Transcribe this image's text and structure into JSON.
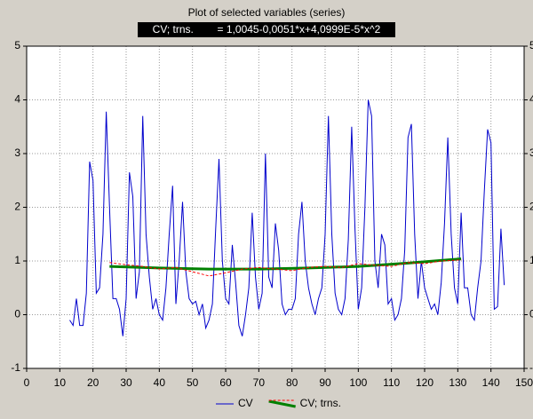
{
  "chart_data": {
    "type": "line",
    "title": "Plot of selected variables (series)",
    "subtitle": "CV; trns.        = 1,0045-0,0051*x+4,0999E-5*x^2",
    "xlim": [
      0,
      150
    ],
    "xticks": [
      0,
      10,
      20,
      30,
      40,
      50,
      60,
      70,
      80,
      90,
      100,
      110,
      120,
      130,
      140,
      150
    ],
    "ylim": [
      -1,
      5
    ],
    "yticks": [
      -1,
      0,
      1,
      2,
      3,
      4,
      5
    ],
    "grid": true,
    "series": [
      {
        "name": "CV",
        "color": "#0000cc",
        "x": [
          13,
          14,
          15,
          16,
          17,
          18,
          19,
          20,
          21,
          22,
          23,
          24,
          25,
          26,
          27,
          28,
          29,
          30,
          31,
          32,
          33,
          34,
          35,
          36,
          37,
          38,
          39,
          40,
          41,
          42,
          43,
          44,
          45,
          46,
          47,
          48,
          49,
          50,
          51,
          52,
          53,
          54,
          55,
          56,
          57,
          58,
          59,
          60,
          61,
          62,
          63,
          64,
          65,
          66,
          67,
          68,
          69,
          70,
          71,
          72,
          73,
          74,
          75,
          76,
          77,
          78,
          79,
          80,
          81,
          82,
          83,
          84,
          85,
          86,
          87,
          88,
          89,
          90,
          91,
          92,
          93,
          94,
          95,
          96,
          97,
          98,
          99,
          100,
          101,
          102,
          103,
          104,
          105,
          106,
          107,
          108,
          109,
          110,
          111,
          112,
          113,
          114,
          115,
          116,
          117,
          118,
          119,
          120,
          121,
          122,
          123,
          124,
          125,
          126,
          127,
          128,
          129,
          130,
          131,
          132,
          133,
          134,
          135,
          136,
          137,
          138,
          139,
          140,
          141,
          142,
          143,
          144
        ],
        "values": [
          -0.1,
          -0.2,
          0.3,
          -0.2,
          -0.2,
          0.4,
          2.85,
          2.5,
          0.4,
          0.5,
          1.5,
          3.78,
          2.0,
          0.3,
          0.3,
          0.1,
          -0.4,
          0.3,
          2.65,
          2.2,
          0.3,
          0.8,
          3.7,
          1.5,
          0.7,
          0.1,
          0.3,
          0.0,
          -0.1,
          0.5,
          1.5,
          2.4,
          0.2,
          1.0,
          2.1,
          0.8,
          0.3,
          0.2,
          0.25,
          0.0,
          0.2,
          -0.25,
          -0.1,
          0.2,
          1.6,
          2.9,
          1.0,
          0.3,
          0.2,
          1.3,
          0.6,
          -0.2,
          -0.4,
          0.0,
          0.5,
          1.9,
          0.7,
          0.1,
          0.4,
          3.0,
          0.7,
          0.5,
          1.7,
          1.2,
          0.2,
          0.0,
          0.1,
          0.1,
          0.3,
          1.5,
          2.1,
          1.0,
          0.5,
          0.2,
          0.0,
          0.3,
          0.5,
          1.5,
          3.7,
          1.5,
          0.4,
          0.1,
          0.0,
          0.3,
          1.4,
          3.5,
          1.6,
          0.1,
          0.5,
          2.0,
          4.0,
          3.7,
          1.0,
          0.5,
          1.5,
          1.3,
          0.2,
          0.3,
          -0.1,
          0.0,
          0.3,
          1.2,
          3.3,
          3.55,
          1.5,
          0.3,
          1.0,
          0.5,
          0.3,
          0.1,
          0.2,
          0.0,
          0.6,
          1.7,
          3.3,
          1.5,
          0.5,
          0.2,
          1.9,
          0.5,
          0.5,
          0.0,
          -0.1,
          0.5,
          1.0,
          2.3,
          3.45,
          3.2,
          0.1,
          0.15,
          1.6,
          0.55
        ]
      },
      {
        "name": "CV; trns.",
        "color": "#ff0000",
        "dashed": true,
        "x": [
          25,
          30,
          35,
          40,
          45,
          50,
          55,
          60,
          65,
          70,
          75,
          80,
          85,
          90,
          95,
          100,
          105,
          110,
          115,
          120,
          125,
          131
        ],
        "values": [
          0.97,
          0.93,
          0.9,
          0.85,
          0.88,
          0.8,
          0.72,
          0.78,
          0.85,
          0.88,
          0.85,
          0.82,
          0.88,
          0.9,
          0.88,
          0.95,
          0.92,
          0.9,
          0.97,
          0.95,
          1.0,
          1.02
        ],
        "trend": {
          "color": "#008000",
          "x": [
            25,
            40,
            55,
            70,
            85,
            100,
            115,
            131
          ],
          "values": [
            0.9,
            0.87,
            0.85,
            0.85,
            0.87,
            0.9,
            0.96,
            1.04
          ]
        }
      }
    ]
  }
}
